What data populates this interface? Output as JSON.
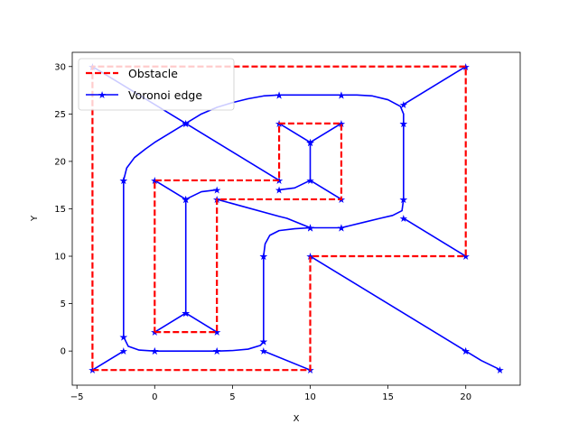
{
  "chart_data": {
    "type": "line",
    "title": "",
    "xlabel": "X",
    "ylabel": "Y",
    "xlim": [
      -5.3,
      23.5
    ],
    "ylim": [
      -3.6,
      31.5
    ],
    "xticks": [
      -5,
      0,
      5,
      10,
      15,
      20
    ],
    "yticks": [
      0,
      5,
      10,
      15,
      20,
      25,
      30
    ],
    "grid": false,
    "legend": {
      "position": "top-left"
    },
    "colors": {
      "obstacle": "#ff0000",
      "voronoi": "#0000ff"
    },
    "series": [
      {
        "name": "Obstacle",
        "style": "dashed",
        "polylines": [
          [
            [
              -4,
              -2
            ],
            [
              10,
              -2
            ],
            [
              10,
              10
            ],
            [
              20,
              10
            ],
            [
              20,
              30
            ],
            [
              -4,
              30
            ],
            [
              -4,
              -2
            ]
          ],
          [
            [
              0,
              2
            ],
            [
              4,
              2
            ],
            [
              4,
              16
            ],
            [
              12,
              16
            ],
            [
              12,
              24
            ],
            [
              8,
              24
            ],
            [
              8,
              18
            ],
            [
              0,
              18
            ],
            [
              0,
              2
            ]
          ]
        ]
      },
      {
        "name": "Voronoi edge",
        "style": "solid-star",
        "polylines": [
          [
            [
              -4,
              30
            ],
            [
              2,
              24
            ],
            [
              8,
              18
            ]
          ],
          [
            [
              2,
              24
            ],
            [
              3,
              25
            ],
            [
              4,
              25.7
            ],
            [
              5,
              26.2
            ],
            [
              6,
              26.6
            ],
            [
              7,
              26.9
            ],
            [
              8,
              27
            ]
          ],
          [
            [
              8,
              27
            ],
            [
              12,
              27
            ]
          ],
          [
            [
              12,
              27
            ],
            [
              13,
              27
            ],
            [
              14,
              26.9
            ],
            [
              15,
              26.5
            ],
            [
              15.8,
              25.8
            ],
            [
              16,
              25
            ],
            [
              16,
              24
            ]
          ],
          [
            [
              20,
              30
            ],
            [
              16,
              26
            ]
          ],
          [
            [
              16,
              24
            ],
            [
              16,
              16
            ]
          ],
          [
            [
              20,
              10
            ],
            [
              16,
              14
            ]
          ],
          [
            [
              16,
              16
            ],
            [
              15.9,
              14.8
            ],
            [
              15.3,
              14.3
            ],
            [
              14.5,
              14
            ],
            [
              13.5,
              13.6
            ],
            [
              12.5,
              13.2
            ],
            [
              12,
              13
            ]
          ],
          [
            [
              12,
              13
            ],
            [
              10,
              13
            ]
          ],
          [
            [
              10,
              13
            ],
            [
              9,
              12.9
            ],
            [
              8,
              12.7
            ],
            [
              7.4,
              12.2
            ],
            [
              7.1,
              11.3
            ],
            [
              7,
              10
            ]
          ],
          [
            [
              7,
              10
            ],
            [
              7,
              1
            ]
          ],
          [
            [
              10,
              -2
            ],
            [
              7,
              0
            ]
          ],
          [
            [
              7,
              1
            ],
            [
              6.8,
              0.6
            ],
            [
              6,
              0.2
            ],
            [
              5,
              0.05
            ],
            [
              4,
              0
            ]
          ],
          [
            [
              4,
              0
            ],
            [
              0,
              0
            ]
          ],
          [
            [
              0,
              0
            ],
            [
              -1,
              0.1
            ],
            [
              -1.7,
              0.5
            ],
            [
              -2,
              1.5
            ]
          ],
          [
            [
              -4,
              -2
            ],
            [
              -2,
              0
            ]
          ],
          [
            [
              -2,
              1.5
            ],
            [
              -2,
              18
            ]
          ],
          [
            [
              -2,
              18
            ],
            [
              -1.8,
              19.3
            ],
            [
              -1.3,
              20.4
            ],
            [
              -0.6,
              21.3
            ],
            [
              0,
              22
            ],
            [
              2,
              24
            ]
          ],
          [
            [
              0,
              18
            ],
            [
              2,
              16
            ]
          ],
          [
            [
              0,
              2
            ],
            [
              2,
              4
            ]
          ],
          [
            [
              2,
              4
            ],
            [
              4,
              2
            ]
          ],
          [
            [
              2,
              4
            ],
            [
              2,
              16
            ]
          ],
          [
            [
              2,
              16
            ],
            [
              3,
              16.8
            ],
            [
              4,
              17
            ]
          ],
          [
            [
              4,
              16
            ],
            [
              8,
              14.2
            ],
            [
              8.5,
              14
            ],
            [
              10,
              13
            ]
          ],
          [
            [
              8,
              17
            ],
            [
              9,
              17.2
            ],
            [
              10,
              18
            ],
            [
              12,
              16
            ]
          ],
          [
            [
              10,
              18
            ],
            [
              10,
              22
            ]
          ],
          [
            [
              8,
              24
            ],
            [
              10,
              22
            ]
          ],
          [
            [
              12,
              24
            ],
            [
              10,
              22
            ]
          ],
          [
            [
              10,
              10
            ],
            [
              20,
              0
            ]
          ],
          [
            [
              20,
              0
            ],
            [
              21,
              -1
            ],
            [
              22,
              -1.8
            ],
            [
              22.2,
              -2
            ]
          ]
        ]
      }
    ]
  }
}
